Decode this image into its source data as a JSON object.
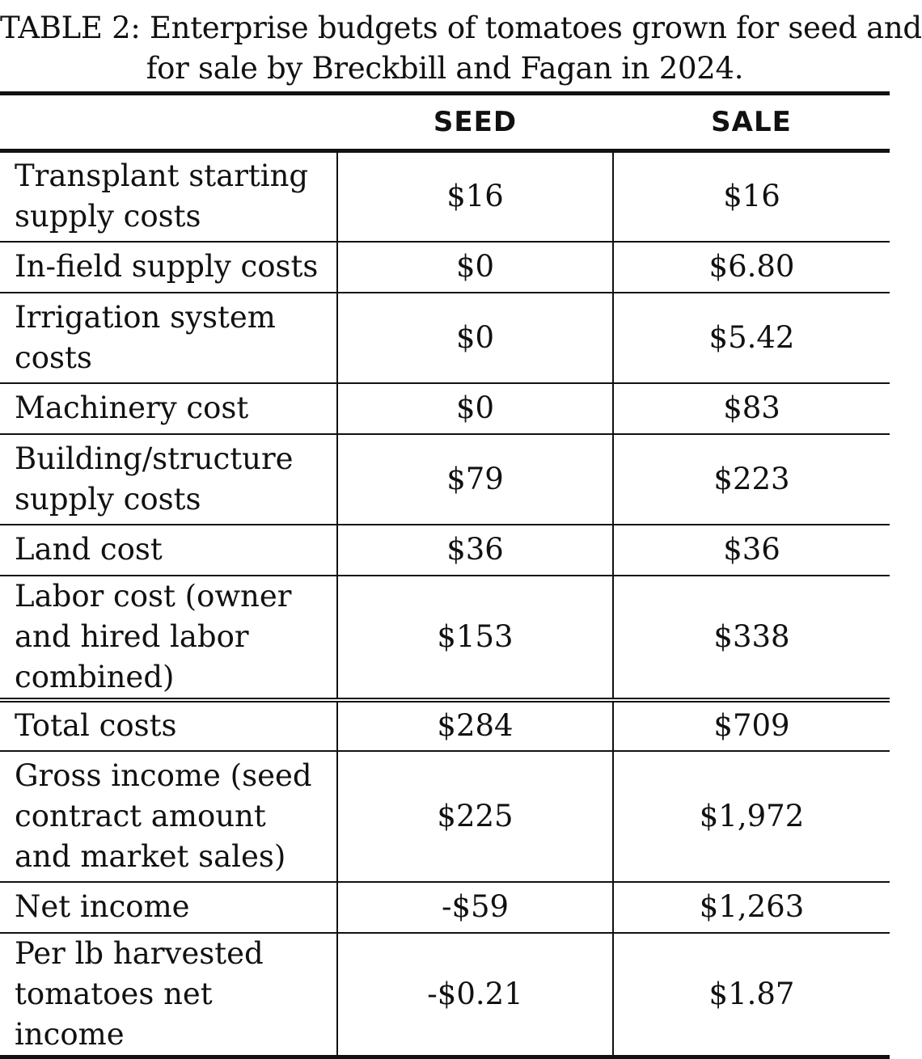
{
  "caption": {
    "line1": "TABLE 2: Enterprise budgets of tomatoes grown for seed and",
    "line2": "for sale by Breckbill and Fagan in 2024."
  },
  "table": {
    "headers": {
      "label": "",
      "seed": "SEED",
      "sale": "SALE"
    },
    "rows": [
      {
        "label": "Transplant starting supply costs",
        "seed": "$16",
        "sale": "$16"
      },
      {
        "label": "In-field supply costs",
        "seed": "$0",
        "sale": "$6.80"
      },
      {
        "label": "Irrigation system costs",
        "seed": "$0",
        "sale": "$5.42"
      },
      {
        "label": "Machinery cost",
        "seed": "$0",
        "sale": "$83"
      },
      {
        "label": "Building/structure supply costs",
        "seed": "$79",
        "sale": "$223"
      },
      {
        "label": "Land cost",
        "seed": "$36",
        "sale": "$36"
      },
      {
        "label": "Labor cost (owner and hired labor combined)",
        "seed": "$153",
        "sale": "$338"
      },
      {
        "label": "Total costs",
        "seed": "$284",
        "sale": "$709"
      },
      {
        "label": "Gross income (seed contract amount and market sales)",
        "seed": "$225",
        "sale": "$1,972"
      },
      {
        "label": "Net income",
        "seed": "-$59",
        "sale": "$1,263"
      },
      {
        "label": "Per lb harvested tomatoes net income",
        "seed": "-$0.21",
        "sale": "$1.87"
      }
    ]
  }
}
